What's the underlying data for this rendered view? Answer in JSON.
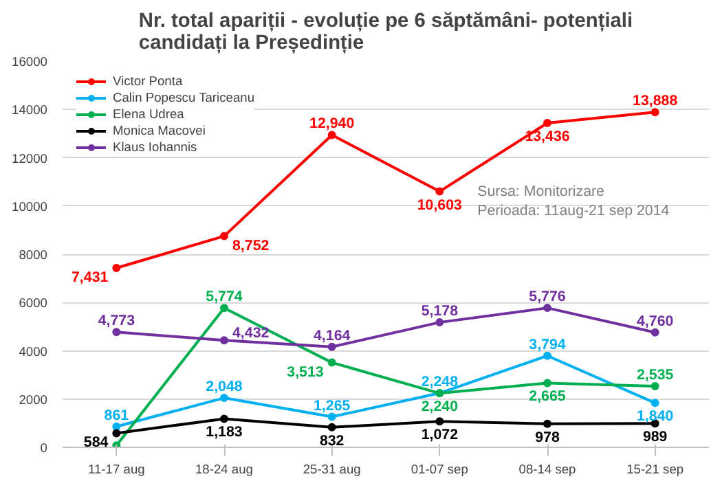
{
  "chart_data": {
    "type": "line",
    "title": "Nr. total apariții - evoluție pe 6 săptămâni- potențiali candidați la Președinție",
    "categories": [
      "11-17 aug",
      "18-24 aug",
      "25-31 aug",
      "01-07 sep",
      "08-14 sep",
      "15-21 sep"
    ],
    "series": [
      {
        "name": "Victor Ponta",
        "color": "#ff0000",
        "values": [
          7431,
          8752,
          12940,
          10603,
          13436,
          13888
        ],
        "value_labels": [
          "7,431",
          "8,752",
          "12,940",
          "10,603",
          "13,436",
          "13,888"
        ]
      },
      {
        "name": "Calin Popescu Tariceanu",
        "color": "#00b0f0",
        "values": [
          861,
          2048,
          1265,
          2248,
          3794,
          1840
        ],
        "value_labels": [
          "861",
          "2,048",
          "1,265",
          "2,248",
          "3,794",
          "1,840"
        ]
      },
      {
        "name": "Elena Udrea",
        "color": "#00b050",
        "values": [
          80,
          5774,
          3513,
          2240,
          2665,
          2535
        ],
        "value_labels": [
          null,
          "5,774",
          "3,513",
          "2,240",
          "2,665",
          "2,535"
        ]
      },
      {
        "name": "Monica Macovei",
        "color": "#000000",
        "values": [
          584,
          1183,
          832,
          1072,
          978,
          989
        ],
        "value_labels": [
          "584",
          "1,183",
          "832",
          "1,072",
          "978",
          "989"
        ]
      },
      {
        "name": "Klaus Iohannis",
        "color": "#7030a0",
        "values": [
          4773,
          4432,
          4164,
          5178,
          5776,
          4760
        ],
        "value_labels": [
          "4,773",
          "4,432",
          "4,164",
          "5,178",
          "5,776",
          "4,760"
        ]
      }
    ],
    "ylim": [
      0,
      16000
    ],
    "yticks": [
      0,
      2000,
      4000,
      6000,
      8000,
      10000,
      12000,
      14000,
      16000
    ],
    "grid": "y",
    "legend": "top left",
    "marker": "circle",
    "line_style": "solid",
    "annotations": [
      "Sursa: Monitorizare",
      "Perioada: 11aug-21 sep 2014"
    ]
  }
}
